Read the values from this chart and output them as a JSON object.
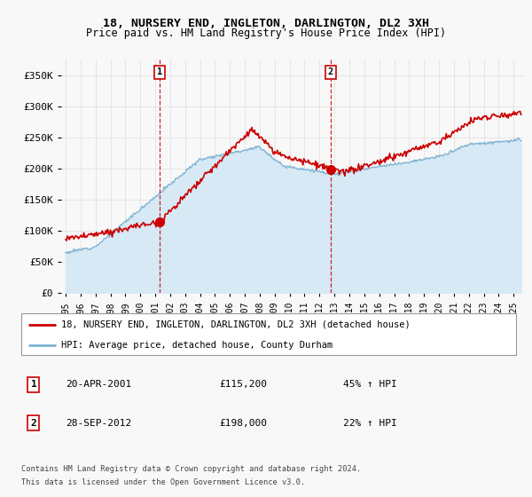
{
  "title": "18, NURSERY END, INGLETON, DARLINGTON, DL2 3XH",
  "subtitle": "Price paid vs. HM Land Registry's House Price Index (HPI)",
  "ylabel_ticks": [
    "£0",
    "£50K",
    "£100K",
    "£150K",
    "£200K",
    "£250K",
    "£300K",
    "£350K"
  ],
  "ytick_vals": [
    0,
    50000,
    100000,
    150000,
    200000,
    250000,
    300000,
    350000
  ],
  "ylim": [
    0,
    375000
  ],
  "xlim": [
    1994.7,
    2025.7
  ],
  "xtick_years": [
    1995,
    1996,
    1997,
    1998,
    1999,
    2000,
    2001,
    2002,
    2003,
    2004,
    2005,
    2006,
    2007,
    2008,
    2009,
    2010,
    2011,
    2012,
    2013,
    2014,
    2015,
    2016,
    2017,
    2018,
    2019,
    2020,
    2021,
    2022,
    2023,
    2024,
    2025
  ],
  "sale1_x": 2001.3,
  "sale1_y": 115200,
  "sale2_x": 2012.75,
  "sale2_y": 198000,
  "legend_line1": "18, NURSERY END, INGLETON, DARLINGTON, DL2 3XH (detached house)",
  "legend_line2": "HPI: Average price, detached house, County Durham",
  "sale1_date": "20-APR-2001",
  "sale1_price": "£115,200",
  "sale1_hpi": "45% ↑ HPI",
  "sale2_date": "28-SEP-2012",
  "sale2_price": "£198,000",
  "sale2_hpi": "22% ↑ HPI",
  "footnote1": "Contains HM Land Registry data © Crown copyright and database right 2024.",
  "footnote2": "This data is licensed under the Open Government Licence v3.0.",
  "line_color_red": "#cc0000",
  "line_color_blue": "#7fb3d3",
  "fill_color_blue": "#d6e9f5",
  "vline_color": "#cc0000",
  "background_color": "#f8f8f8",
  "grid_color": "#dddddd",
  "box_edge_color": "#cc0000",
  "legend_edge_color": "#999999"
}
